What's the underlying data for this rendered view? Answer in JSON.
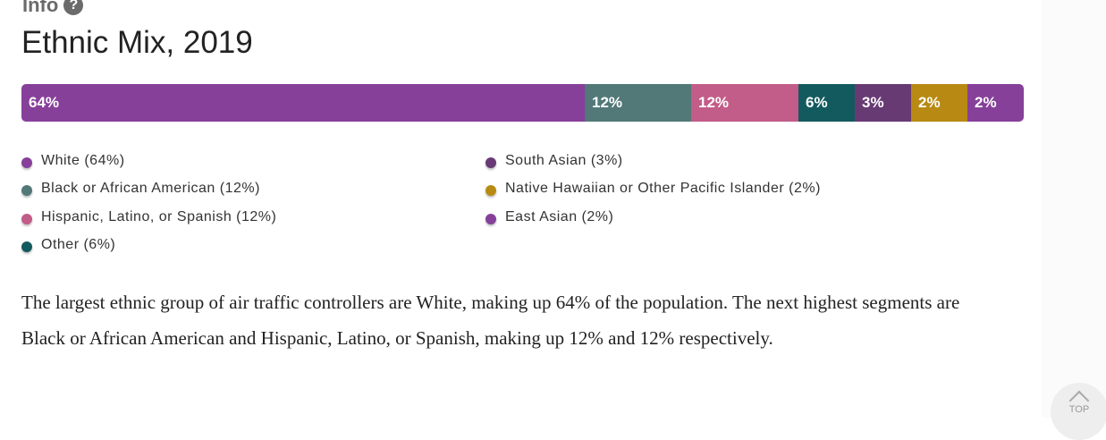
{
  "header": {
    "info_label": "Info",
    "help_icon": "?",
    "title": "Ethnic Mix, 2019"
  },
  "chart_data": {
    "type": "bar",
    "stacked": true,
    "orientation": "horizontal",
    "title": "Ethnic Mix, 2019",
    "categories": [
      "White",
      "Black or African American",
      "Hispanic, Latino, or Spanish",
      "Other",
      "South Asian",
      "Native Hawaiian or Other Pacific Islander",
      "East Asian"
    ],
    "values": [
      64,
      12,
      12,
      6,
      3,
      2,
      2
    ],
    "labels": [
      "64%",
      "12%",
      "12%",
      "6%",
      "3%",
      "2%",
      "2%"
    ],
    "colors": [
      "#86409a",
      "#527878",
      "#c25c88",
      "#135a5e",
      "#683a74",
      "#b88a13",
      "#86409a"
    ],
    "legend": [
      "White (64%)",
      "Black or African American (12%)",
      "Hispanic, Latino, or Spanish (12%)",
      "Other (6%)",
      "South Asian (3%)",
      "Native Hawaiian or Other Pacific Islander (2%)",
      "East Asian (2%)"
    ]
  },
  "description": "The largest ethnic group of air traffic controllers are White, making up 64% of the population. The next highest segments are Black or African American and Hispanic, Latino, or Spanish, making up 12% and 12% respectively.",
  "back_to_top": {
    "label": "TOP",
    "icon": "chevron-up-icon"
  }
}
